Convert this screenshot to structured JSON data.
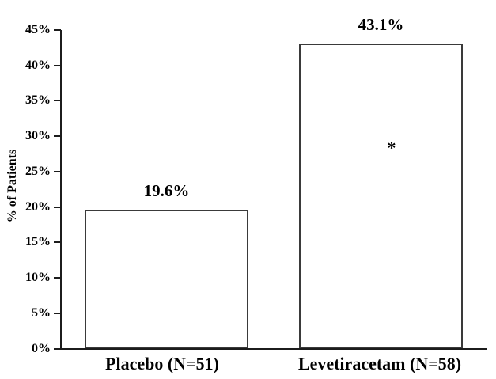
{
  "background": "#ffffff",
  "colors": {
    "text": "#000000",
    "axis": "#1c1c1c",
    "bar_border": "#3a3a3a",
    "bar_fill": "#ffffff"
  },
  "chart_data": {
    "type": "bar",
    "title": "",
    "xlabel": "",
    "ylabel": "% of Patients",
    "categories": [
      "Placebo (N=51)",
      "Levetiracetam (N=58)"
    ],
    "values": [
      19.6,
      43.1
    ],
    "value_labels": [
      "19.6%",
      "43.1%"
    ],
    "ylim": [
      0,
      45
    ],
    "ytick_step": 5,
    "yticks": [
      "0%",
      "5%",
      "10%",
      "15%",
      "20%",
      "25%",
      "30%",
      "35%",
      "40%",
      "45%"
    ],
    "grid": false,
    "legend": false,
    "bar_fill": "white",
    "annotation": {
      "text": "*",
      "bar_index": 1
    }
  }
}
